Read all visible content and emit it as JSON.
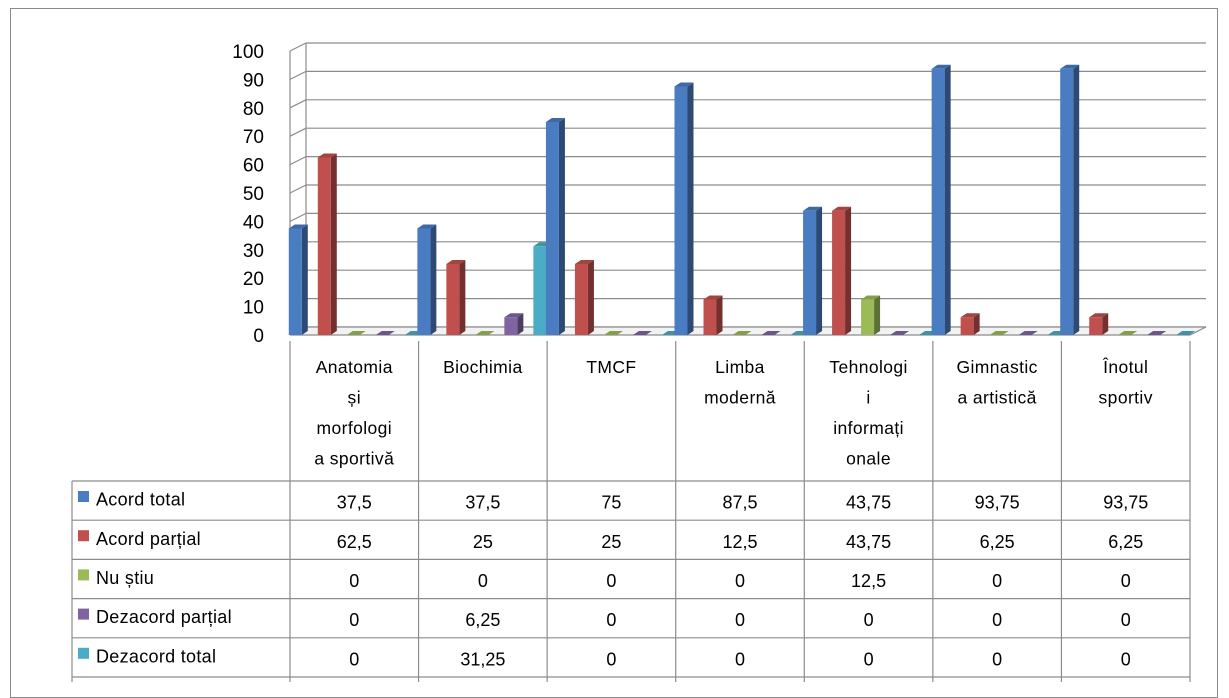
{
  "chart_data": {
    "type": "bar",
    "categories": [
      [
        "Anatomia",
        "și",
        "morfologi",
        "a sportivă"
      ],
      [
        "Biochimia"
      ],
      [
        "TMCF"
      ],
      [
        "Limba",
        "modernă"
      ],
      [
        "Tehnologi",
        "i",
        "informați",
        "onale"
      ],
      [
        "Gimnastic",
        "a artistică"
      ],
      [
        "Înotul",
        "sportiv"
      ]
    ],
    "category_names": [
      "Anatomia și morfologia sportivă",
      "Biochimia",
      "TMCF",
      "Limba modernă",
      "Tehnologii informaționale",
      "Gimnastica artistică",
      "Înotul sportiv"
    ],
    "series": [
      {
        "name": "Acord total",
        "color": "#4a7cc1",
        "values": [
          37.5,
          37.5,
          75,
          87.5,
          43.75,
          93.75,
          93.75
        ],
        "labels": [
          "37,5",
          "37,5",
          "75",
          "87,5",
          "43,75",
          "93,75",
          "93,75"
        ]
      },
      {
        "name": "Acord parțial",
        "color": "#c0504d",
        "values": [
          62.5,
          25,
          25,
          12.5,
          43.75,
          6.25,
          6.25
        ],
        "labels": [
          "62,5",
          "25",
          "25",
          "12,5",
          "43,75",
          "6,25",
          "6,25"
        ]
      },
      {
        "name": "Nu știu",
        "color": "#9bbb59",
        "values": [
          0,
          0,
          0,
          0,
          12.5,
          0,
          0
        ],
        "labels": [
          "0",
          "0",
          "0",
          "0",
          "12,5",
          "0",
          "0"
        ]
      },
      {
        "name": "Dezacord parțial",
        "color": "#8064a2",
        "values": [
          0,
          6.25,
          0,
          0,
          0,
          0,
          0
        ],
        "labels": [
          "0",
          "6,25",
          "0",
          "0",
          "0",
          "0",
          "0"
        ]
      },
      {
        "name": "Dezacord total",
        "color": "#4bacc6",
        "values": [
          0,
          31.25,
          0,
          0,
          0,
          0,
          0
        ],
        "labels": [
          "0",
          "31,25",
          "0",
          "0",
          "0",
          "0",
          "0"
        ]
      }
    ],
    "y_ticks": [
      "0",
      "10",
      "20",
      "30",
      "40",
      "50",
      "60",
      "70",
      "80",
      "90",
      "100"
    ],
    "ylim": [
      0,
      100
    ],
    "grid": true,
    "legend": "data-table",
    "style": "3d-clustered-column"
  }
}
